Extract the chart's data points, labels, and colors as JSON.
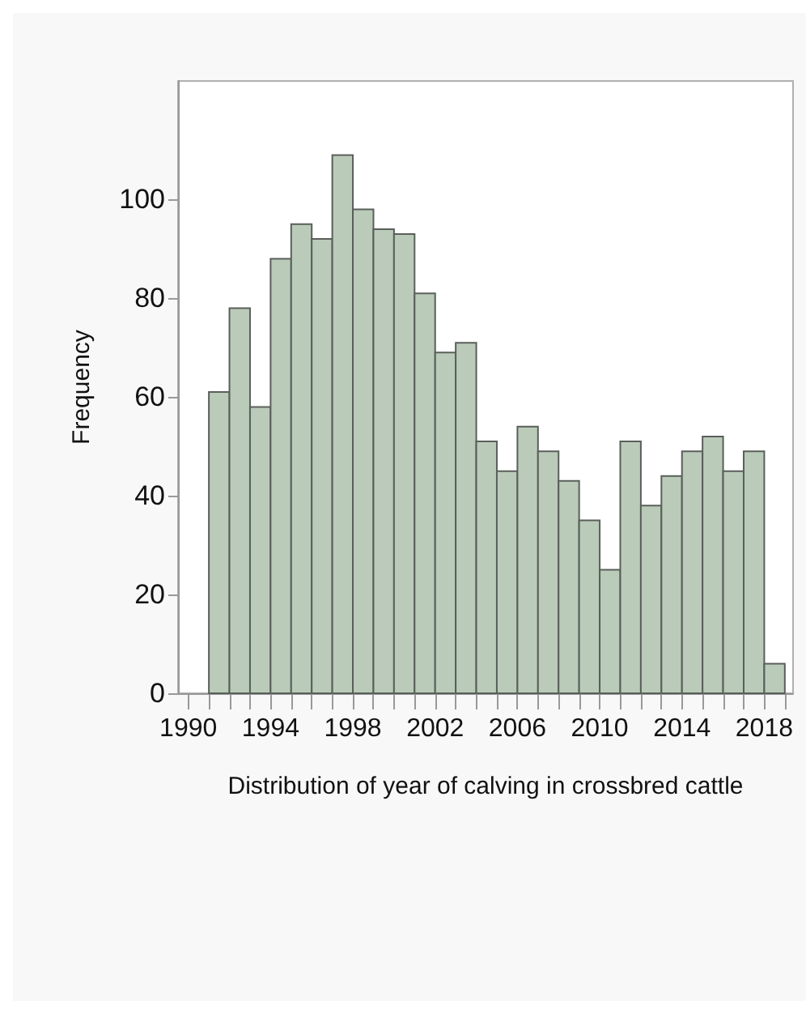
{
  "chart_data": {
    "type": "histogram",
    "xlabel": "Distribution of year of calving in crossbred cattle",
    "ylabel": "Frequency",
    "color": "#bacbba",
    "bins": [
      1991,
      1992,
      1993,
      1994,
      1995,
      1996,
      1997,
      1998,
      1999,
      2000,
      2001,
      2002,
      2003,
      2004,
      2005,
      2006,
      2007,
      2008,
      2009,
      2010,
      2011,
      2012,
      2013,
      2014,
      2015,
      2016,
      2017,
      2018,
      2019
    ],
    "values": [
      61,
      78,
      58,
      88,
      95,
      92,
      109,
      98,
      94,
      93,
      81,
      69,
      71,
      51,
      45,
      54,
      49,
      43,
      35,
      25,
      51,
      38,
      44,
      49,
      52,
      45,
      49,
      6
    ],
    "xlim": [
      1989.5,
      2019.4
    ],
    "ylim": [
      0,
      124
    ],
    "yticks": [
      0,
      20,
      40,
      60,
      80,
      100
    ],
    "xticks": [
      1990,
      {
        "value": 1991,
        "label": null
      },
      {
        "value": 1992,
        "label": null
      },
      {
        "value": 1993,
        "label": null
      },
      1994,
      {
        "value": 1995,
        "label": null
      },
      {
        "value": 1996,
        "label": null
      },
      {
        "value": 1997,
        "label": null
      },
      1998,
      {
        "value": 1999,
        "label": null
      },
      {
        "value": 2000,
        "label": null
      },
      {
        "value": 2001,
        "label": null
      },
      2002,
      {
        "value": 2003,
        "label": null
      },
      {
        "value": 2004,
        "label": null
      },
      {
        "value": 2005,
        "label": null
      },
      2006,
      {
        "value": 2007,
        "label": null
      },
      {
        "value": 2008,
        "label": null
      },
      {
        "value": 2009,
        "label": null
      },
      2010,
      {
        "value": 2011,
        "label": null
      },
      {
        "value": 2012,
        "label": null
      },
      {
        "value": 2013,
        "label": null
      },
      2014,
      {
        "value": 2015,
        "label": null
      },
      {
        "value": 2016,
        "label": null
      },
      {
        "value": 2017,
        "label": null
      },
      2018,
      {
        "value": 2019,
        "label": null
      }
    ],
    "grid": false
  }
}
